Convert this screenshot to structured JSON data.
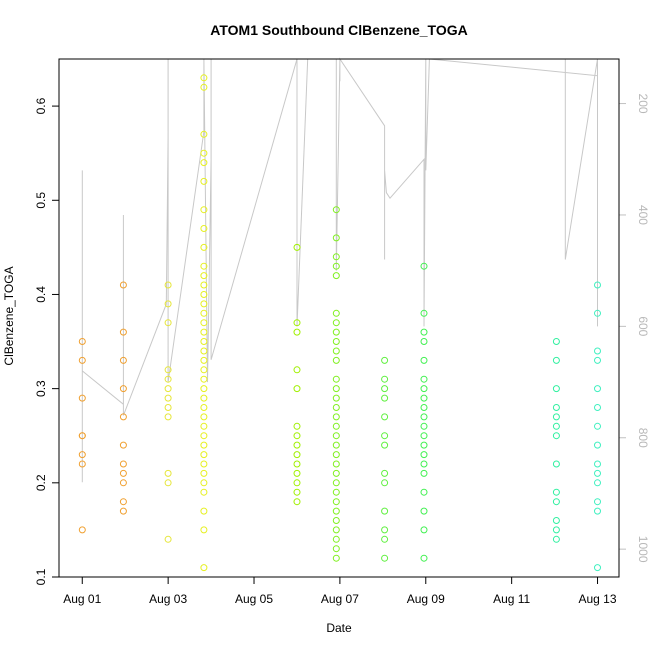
{
  "chart_data": {
    "type": "scatter",
    "title": "ATOM1 Southbound ClBenzene_TOGA",
    "xlabel": "Date",
    "ylabel": "ClBenzene_TOGA",
    "xlim": [
      "2016-07-31T11:00",
      "2016-08-13T12:00"
    ],
    "ylim": [
      0.1,
      0.65
    ],
    "x_ticks": [
      "Aug 01",
      "Aug 03",
      "Aug 05",
      "Aug 07",
      "Aug 09",
      "Aug 11",
      "Aug 13"
    ],
    "y_ticks": [
      0.1,
      0.2,
      0.3,
      0.4,
      0.5,
      0.6
    ],
    "y2_axis": {
      "ticks": [
        200,
        400,
        600,
        800,
        1000
      ],
      "range_top": 120,
      "range_bottom": 1050,
      "inverted": true,
      "color": "#c0c0c0"
    },
    "grid": false,
    "groups": [
      {
        "date": "2016-08-01T00:00",
        "color": "#f0a030",
        "values": [
          0.35,
          0.33,
          0.29,
          0.25,
          0.25,
          0.23,
          0.22,
          0.15
        ]
      },
      {
        "date": "2016-08-01T23:00",
        "color": "#f0a030",
        "values": [
          0.41,
          0.36,
          0.33,
          0.3,
          0.27,
          0.24,
          0.22,
          0.21,
          0.2,
          0.18,
          0.17
        ]
      },
      {
        "date": "2016-08-03T00:00",
        "color": "#e6e63a",
        "values": [
          0.41,
          0.39,
          0.37,
          0.32,
          0.31,
          0.3,
          0.29,
          0.28,
          0.27,
          0.21,
          0.2,
          0.14
        ]
      },
      {
        "date": "2016-08-03T20:00",
        "color": "#e6f020",
        "values": [
          0.63,
          0.62,
          0.57,
          0.55,
          0.54,
          0.52,
          0.49,
          0.47,
          0.45,
          0.43,
          0.42,
          0.41,
          0.4,
          0.39,
          0.38,
          0.37,
          0.36,
          0.35,
          0.34,
          0.33,
          0.32,
          0.31,
          0.3,
          0.29,
          0.28,
          0.27,
          0.26,
          0.25,
          0.24,
          0.23,
          0.22,
          0.21,
          0.2,
          0.19,
          0.17,
          0.15,
          0.11
        ]
      },
      {
        "date": "2016-08-06T00:00",
        "color": "#a0f000",
        "values": [
          0.45,
          0.37,
          0.36,
          0.32,
          0.3,
          0.26,
          0.25,
          0.24,
          0.23,
          0.22,
          0.21,
          0.2,
          0.19,
          0.18
        ]
      },
      {
        "date": "2016-08-06T22:00",
        "color": "#80f020",
        "values": [
          0.49,
          0.46,
          0.44,
          0.43,
          0.42,
          0.38,
          0.37,
          0.36,
          0.35,
          0.34,
          0.33,
          0.31,
          0.3,
          0.29,
          0.28,
          0.27,
          0.26,
          0.25,
          0.24,
          0.23,
          0.22,
          0.21,
          0.2,
          0.19,
          0.18,
          0.17,
          0.16,
          0.15,
          0.14,
          0.13,
          0.12
        ]
      },
      {
        "date": "2016-08-08T01:00",
        "color": "#60f040",
        "values": [
          0.33,
          0.31,
          0.3,
          0.29,
          0.27,
          0.25,
          0.24,
          0.21,
          0.2,
          0.17,
          0.15,
          0.14,
          0.12
        ]
      },
      {
        "date": "2016-08-08T23:00",
        "color": "#40f050",
        "values": [
          0.43,
          0.38,
          0.36,
          0.35,
          0.33,
          0.31,
          0.3,
          0.29,
          0.28,
          0.27,
          0.26,
          0.25,
          0.24,
          0.23,
          0.22,
          0.21,
          0.19,
          0.17,
          0.15,
          0.12
        ]
      },
      {
        "date": "2016-08-12T01:00",
        "color": "#30f0a0",
        "values": [
          0.35,
          0.33,
          0.3,
          0.28,
          0.27,
          0.26,
          0.25,
          0.22,
          0.19,
          0.18,
          0.16,
          0.15,
          0.14
        ]
      },
      {
        "date": "2016-08-13T00:00",
        "color": "#40f0c0",
        "values": [
          0.41,
          0.38,
          0.34,
          0.33,
          0.3,
          0.28,
          0.26,
          0.24,
          0.22,
          0.21,
          0.2,
          0.18,
          0.17,
          0.11
        ]
      }
    ],
    "altitude_line": {
      "color": "#c8c8c8",
      "points": [
        [
          "2016-08-01T00:00",
          880
        ],
        [
          "2016-08-01T00:00",
          320
        ],
        [
          "2016-08-01T00:00",
          640
        ],
        [
          "2016-08-01T00:00",
          680
        ],
        [
          "2016-08-01T23:00",
          740
        ],
        [
          "2016-08-01T23:00",
          400
        ],
        [
          "2016-08-01T23:00",
          760
        ],
        [
          "2016-08-02T23:00",
          560
        ],
        [
          "2016-08-03T00:00",
          260
        ],
        [
          "2016-08-03T00:00",
          120
        ],
        [
          "2016-08-03T00:00",
          700
        ],
        [
          "2016-08-03T20:00",
          250
        ],
        [
          "2016-08-03T20:00",
          120
        ],
        [
          "2016-08-03T22:00",
          700
        ],
        [
          "2016-08-04T00:00",
          300
        ],
        [
          "2016-08-04T00:00",
          120
        ],
        [
          "2016-08-04T00:00",
          660
        ],
        [
          "2016-08-06T00:00",
          120
        ],
        [
          "2016-08-06T00:00",
          600
        ],
        [
          "2016-08-06T06:00",
          120
        ],
        [
          "2016-08-06T22:00",
          120
        ],
        [
          "2016-08-06T22:00",
          500
        ],
        [
          "2016-08-07T00:00",
          120
        ],
        [
          "2016-08-07T00:00",
          160
        ],
        [
          "2016-08-07T00:00",
          120
        ],
        [
          "2016-08-08T01:00",
          240
        ],
        [
          "2016-08-08T01:00",
          480
        ],
        [
          "2016-08-08T01:00",
          320
        ],
        [
          "2016-08-08T02:00",
          360
        ],
        [
          "2016-08-08T04:00",
          370
        ],
        [
          "2016-08-08T23:00",
          300
        ],
        [
          "2016-08-08T23:00",
          600
        ],
        [
          "2016-08-09T00:00",
          120
        ],
        [
          "2016-08-09T00:00",
          320
        ],
        [
          "2016-08-09T02:00",
          120
        ],
        [
          "2016-08-13T00:00",
          150
        ],
        [
          "2016-08-13T00:00",
          120
        ],
        [
          "2016-08-12T06:00",
          120
        ],
        [
          "2016-08-12T06:00",
          480
        ],
        [
          "2016-08-13T00:00",
          120
        ],
        [
          "2016-08-13T00:00",
          600
        ]
      ]
    }
  }
}
